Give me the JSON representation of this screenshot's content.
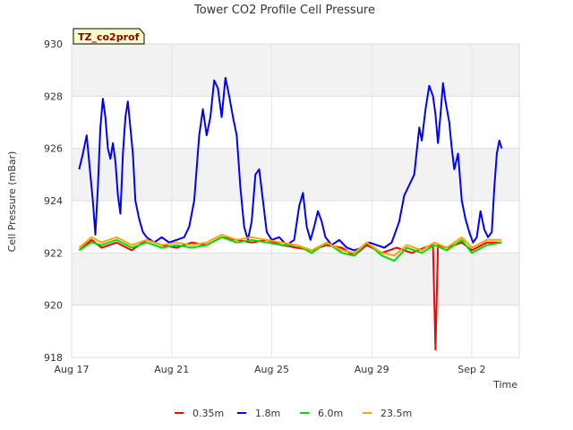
{
  "chart_data": {
    "type": "line",
    "title": "Tower CO2 Profile Cell Pressure",
    "xlabel": "Time",
    "ylabel": "Cell Pressure (mBar)",
    "tag": "TZ_co2prof",
    "xlim": [
      0,
      17.9
    ],
    "ylim": [
      918,
      930
    ],
    "x_ticks": [
      {
        "x": 0,
        "label": "Aug 17"
      },
      {
        "x": 4,
        "label": "Aug 21"
      },
      {
        "x": 8,
        "label": "Aug 25"
      },
      {
        "x": 12,
        "label": "Aug 29"
      },
      {
        "x": 16,
        "label": "Sep 2"
      }
    ],
    "y_ticks": [
      918,
      920,
      922,
      924,
      926,
      928,
      930
    ],
    "grid": true,
    "legend_position": "bottom",
    "series": [
      {
        "name": "0.35m",
        "color": "#ff0000",
        "points": [
          [
            0.3,
            922.1
          ],
          [
            0.8,
            922.5
          ],
          [
            1.2,
            922.2
          ],
          [
            1.8,
            922.4
          ],
          [
            2.4,
            922.1
          ],
          [
            3.0,
            922.5
          ],
          [
            3.6,
            922.3
          ],
          [
            4.2,
            922.2
          ],
          [
            4.8,
            922.4
          ],
          [
            5.4,
            922.3
          ],
          [
            6.0,
            922.6
          ],
          [
            6.6,
            922.5
          ],
          [
            7.2,
            922.4
          ],
          [
            7.8,
            922.5
          ],
          [
            8.4,
            922.3
          ],
          [
            9.0,
            922.2
          ],
          [
            9.6,
            922.1
          ],
          [
            10.2,
            922.3
          ],
          [
            10.8,
            922.2
          ],
          [
            11.3,
            921.9
          ],
          [
            11.8,
            922.3
          ],
          [
            12.4,
            922.0
          ],
          [
            13.0,
            922.2
          ],
          [
            13.6,
            922.0
          ],
          [
            14.1,
            922.2
          ],
          [
            14.45,
            922.3
          ],
          [
            14.55,
            918.3
          ],
          [
            14.65,
            922.3
          ],
          [
            15.0,
            922.2
          ],
          [
            15.6,
            922.4
          ],
          [
            16.0,
            922.1
          ],
          [
            16.6,
            922.4
          ],
          [
            17.2,
            922.4
          ]
        ]
      },
      {
        "name": "1.8m",
        "color": "#0000ff",
        "points": [
          [
            0.3,
            925.2
          ],
          [
            0.45,
            925.8
          ],
          [
            0.6,
            926.5
          ],
          [
            0.65,
            926.0
          ],
          [
            0.75,
            925.0
          ],
          [
            0.85,
            924.0
          ],
          [
            0.95,
            922.7
          ],
          [
            1.05,
            924.5
          ],
          [
            1.15,
            926.8
          ],
          [
            1.25,
            927.9
          ],
          [
            1.35,
            927.2
          ],
          [
            1.45,
            926.0
          ],
          [
            1.55,
            925.6
          ],
          [
            1.65,
            926.2
          ],
          [
            1.75,
            925.5
          ],
          [
            1.85,
            924.2
          ],
          [
            1.95,
            923.5
          ],
          [
            2.05,
            925.8
          ],
          [
            2.15,
            927.2
          ],
          [
            2.25,
            927.8
          ],
          [
            2.35,
            926.8
          ],
          [
            2.45,
            925.8
          ],
          [
            2.55,
            924.0
          ],
          [
            2.7,
            923.3
          ],
          [
            2.85,
            922.8
          ],
          [
            3.0,
            922.6
          ],
          [
            3.3,
            922.4
          ],
          [
            3.6,
            922.6
          ],
          [
            3.9,
            922.4
          ],
          [
            4.2,
            922.5
          ],
          [
            4.5,
            922.6
          ],
          [
            4.7,
            923.0
          ],
          [
            4.9,
            924.0
          ],
          [
            5.1,
            926.5
          ],
          [
            5.25,
            927.5
          ],
          [
            5.4,
            926.5
          ],
          [
            5.55,
            927.2
          ],
          [
            5.7,
            928.6
          ],
          [
            5.85,
            928.3
          ],
          [
            6.0,
            927.2
          ],
          [
            6.15,
            928.7
          ],
          [
            6.3,
            928.0
          ],
          [
            6.45,
            927.2
          ],
          [
            6.6,
            926.5
          ],
          [
            6.75,
            924.5
          ],
          [
            6.9,
            923.0
          ],
          [
            7.05,
            922.5
          ],
          [
            7.2,
            923.2
          ],
          [
            7.35,
            925.0
          ],
          [
            7.5,
            925.2
          ],
          [
            7.65,
            924.0
          ],
          [
            7.8,
            922.8
          ],
          [
            8.0,
            922.5
          ],
          [
            8.3,
            922.6
          ],
          [
            8.6,
            922.3
          ],
          [
            8.9,
            922.5
          ],
          [
            9.1,
            923.8
          ],
          [
            9.25,
            924.3
          ],
          [
            9.4,
            923.0
          ],
          [
            9.55,
            922.5
          ],
          [
            9.7,
            923.0
          ],
          [
            9.85,
            923.6
          ],
          [
            10.0,
            923.2
          ],
          [
            10.15,
            922.6
          ],
          [
            10.4,
            922.3
          ],
          [
            10.7,
            922.5
          ],
          [
            11.0,
            922.2
          ],
          [
            11.3,
            922.1
          ],
          [
            11.6,
            922.2
          ],
          [
            11.9,
            922.4
          ],
          [
            12.2,
            922.3
          ],
          [
            12.5,
            922.2
          ],
          [
            12.8,
            922.4
          ],
          [
            13.1,
            923.2
          ],
          [
            13.3,
            924.2
          ],
          [
            13.5,
            924.6
          ],
          [
            13.7,
            925.0
          ],
          [
            13.9,
            926.8
          ],
          [
            14.0,
            926.3
          ],
          [
            14.15,
            927.5
          ],
          [
            14.3,
            928.4
          ],
          [
            14.45,
            928.0
          ],
          [
            14.55,
            927.3
          ],
          [
            14.65,
            926.2
          ],
          [
            14.75,
            927.3
          ],
          [
            14.85,
            928.5
          ],
          [
            14.95,
            927.8
          ],
          [
            15.1,
            927.0
          ],
          [
            15.2,
            926.0
          ],
          [
            15.3,
            925.2
          ],
          [
            15.45,
            925.8
          ],
          [
            15.6,
            924.0
          ],
          [
            15.75,
            923.3
          ],
          [
            15.9,
            922.8
          ],
          [
            16.05,
            922.4
          ],
          [
            16.2,
            922.6
          ],
          [
            16.35,
            923.6
          ],
          [
            16.5,
            922.9
          ],
          [
            16.65,
            922.6
          ],
          [
            16.8,
            922.8
          ],
          [
            16.9,
            924.5
          ],
          [
            17.0,
            925.8
          ],
          [
            17.1,
            926.3
          ],
          [
            17.2,
            926.0
          ]
        ]
      },
      {
        "name": "6.0m",
        "color": "#00dd00",
        "points": [
          [
            0.3,
            922.1
          ],
          [
            0.8,
            922.4
          ],
          [
            1.2,
            922.3
          ],
          [
            1.8,
            922.5
          ],
          [
            2.4,
            922.2
          ],
          [
            3.0,
            922.4
          ],
          [
            3.6,
            922.2
          ],
          [
            4.2,
            922.3
          ],
          [
            4.8,
            922.2
          ],
          [
            5.4,
            922.3
          ],
          [
            6.0,
            922.6
          ],
          [
            6.6,
            922.4
          ],
          [
            7.2,
            922.5
          ],
          [
            7.8,
            922.4
          ],
          [
            8.4,
            922.3
          ],
          [
            9.0,
            922.3
          ],
          [
            9.6,
            922.0
          ],
          [
            10.2,
            922.4
          ],
          [
            10.8,
            922.0
          ],
          [
            11.3,
            921.9
          ],
          [
            11.8,
            922.4
          ],
          [
            12.4,
            921.9
          ],
          [
            12.9,
            921.7
          ],
          [
            13.4,
            922.2
          ],
          [
            14.0,
            922.0
          ],
          [
            14.5,
            922.3
          ],
          [
            15.0,
            922.1
          ],
          [
            15.6,
            922.5
          ],
          [
            16.0,
            922.0
          ],
          [
            16.6,
            922.3
          ],
          [
            17.2,
            922.4
          ]
        ]
      },
      {
        "name": "23.5m",
        "color": "#ffa500",
        "points": [
          [
            0.3,
            922.2
          ],
          [
            0.8,
            922.6
          ],
          [
            1.2,
            922.4
          ],
          [
            1.8,
            922.6
          ],
          [
            2.4,
            922.3
          ],
          [
            3.0,
            922.5
          ],
          [
            3.6,
            922.3
          ],
          [
            4.2,
            922.4
          ],
          [
            4.8,
            922.3
          ],
          [
            5.4,
            922.4
          ],
          [
            6.0,
            922.7
          ],
          [
            6.6,
            922.5
          ],
          [
            7.2,
            922.6
          ],
          [
            7.8,
            922.5
          ],
          [
            8.4,
            922.4
          ],
          [
            9.0,
            922.3
          ],
          [
            9.6,
            922.1
          ],
          [
            10.2,
            922.4
          ],
          [
            10.8,
            922.1
          ],
          [
            11.3,
            922.0
          ],
          [
            11.8,
            922.4
          ],
          [
            12.4,
            922.0
          ],
          [
            12.9,
            921.9
          ],
          [
            13.4,
            922.3
          ],
          [
            14.0,
            922.1
          ],
          [
            14.5,
            922.4
          ],
          [
            15.0,
            922.2
          ],
          [
            15.6,
            922.6
          ],
          [
            16.0,
            922.2
          ],
          [
            16.6,
            922.5
          ],
          [
            17.2,
            922.5
          ]
        ]
      }
    ]
  }
}
